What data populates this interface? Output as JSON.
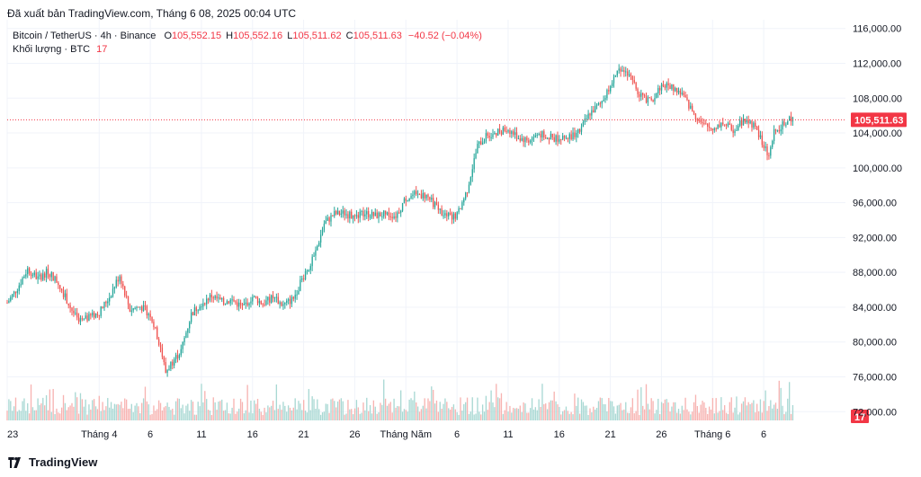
{
  "header": {
    "published": "Đã xuất bản TradingView.com, Tháng 6 08, 2025 00:04 UTC"
  },
  "legend": {
    "symbol": "Bitcoin / TetherUS · 4h · Binance",
    "o_label": "O",
    "o_value": "105,552.15",
    "h_label": "H",
    "h_value": "105,552.16",
    "l_label": "L",
    "l_value": "105,511.62",
    "c_label": "C",
    "c_value": "105,511.63",
    "change": "−40.52 (−0.04%)",
    "volume_label": "Khối lượng · BTC",
    "volume_value": "17"
  },
  "footer": {
    "brand": "TradingView",
    "logo_icon": "tradingview-logo-icon"
  },
  "colors": {
    "up": "#26a69a",
    "down": "#ef5350",
    "vol_up": "#a8d8d3",
    "vol_down": "#f7b3b1",
    "price_line": "#f23645",
    "grid": "#f0f3fa",
    "text": "#131722"
  },
  "chart_data": {
    "type": "candlestick",
    "interval": "4h",
    "y_axis": {
      "ticks": [
        "116,000.00",
        "112,000.00",
        "108,000.00",
        "104,000.00",
        "100,000.00",
        "96,000.00",
        "92,000.00",
        "88,000.00",
        "84,000.00",
        "80,000.00",
        "76,000.00",
        "72,000.00"
      ],
      "range": [
        71000,
        117000
      ]
    },
    "x_axis": {
      "tick_labels": [
        "23",
        "Tháng 4",
        "6",
        "11",
        "16",
        "21",
        "26",
        "Tháng Năm",
        "6",
        "11",
        "16",
        "21",
        "26",
        "Tháng 6",
        "6"
      ],
      "tick_days": [
        0,
        9,
        14,
        19,
        24,
        29,
        34,
        39,
        44,
        49,
        54,
        59,
        64,
        69,
        74
      ],
      "range_days": [
        0,
        82
      ]
    },
    "last_price": {
      "label": "105,511.63",
      "value": 105511.63
    },
    "last_volume": {
      "label": "17"
    },
    "price_path": [
      [
        0,
        84500
      ],
      [
        1,
        86200
      ],
      [
        2,
        88400
      ],
      [
        3,
        87300
      ],
      [
        4,
        88100
      ],
      [
        5,
        86800
      ],
      [
        6,
        84400
      ],
      [
        7,
        82200
      ],
      [
        8,
        82800
      ],
      [
        9,
        83400
      ],
      [
        10,
        85200
      ],
      [
        11,
        87700
      ],
      [
        12,
        83700
      ],
      [
        13,
        84100
      ],
      [
        14,
        83200
      ],
      [
        15,
        79400
      ],
      [
        15.5,
        76500
      ],
      [
        16,
        77500
      ],
      [
        17,
        79000
      ],
      [
        18,
        83200
      ],
      [
        19,
        84500
      ],
      [
        20,
        85300
      ],
      [
        21,
        84600
      ],
      [
        22,
        84800
      ],
      [
        23,
        84000
      ],
      [
        24,
        85200
      ],
      [
        25,
        84400
      ],
      [
        26,
        85100
      ],
      [
        27,
        84200
      ],
      [
        28,
        85000
      ],
      [
        29,
        87600
      ],
      [
        30,
        89700
      ],
      [
        31,
        93600
      ],
      [
        32,
        94700
      ],
      [
        33,
        94800
      ],
      [
        34,
        94300
      ],
      [
        35,
        94800
      ],
      [
        36,
        94500
      ],
      [
        37,
        94700
      ],
      [
        38,
        94500
      ],
      [
        39,
        96500
      ],
      [
        40,
        97000
      ],
      [
        41,
        96800
      ],
      [
        42,
        95500
      ],
      [
        43,
        94400
      ],
      [
        44,
        94500
      ],
      [
        45,
        97500
      ],
      [
        46,
        102500
      ],
      [
        47,
        103800
      ],
      [
        48,
        104200
      ],
      [
        49,
        104400
      ],
      [
        50,
        103500
      ],
      [
        51,
        103100
      ],
      [
        52,
        103900
      ],
      [
        53,
        103500
      ],
      [
        54,
        103300
      ],
      [
        55,
        103600
      ],
      [
        56,
        104200
      ],
      [
        57,
        106300
      ],
      [
        58,
        107300
      ],
      [
        59,
        109500
      ],
      [
        60,
        111500
      ],
      [
        61,
        110200
      ],
      [
        62,
        108200
      ],
      [
        63,
        107600
      ],
      [
        64,
        109500
      ],
      [
        65,
        109300
      ],
      [
        66,
        108500
      ],
      [
        67,
        106500
      ],
      [
        68,
        104900
      ],
      [
        69,
        104500
      ],
      [
        70,
        105200
      ],
      [
        71,
        104300
      ],
      [
        72,
        105500
      ],
      [
        73,
        105000
      ],
      [
        74,
        102500
      ],
      [
        74.5,
        101200
      ],
      [
        75,
        104000
      ],
      [
        76,
        105200
      ],
      [
        77,
        105700
      ]
    ]
  }
}
